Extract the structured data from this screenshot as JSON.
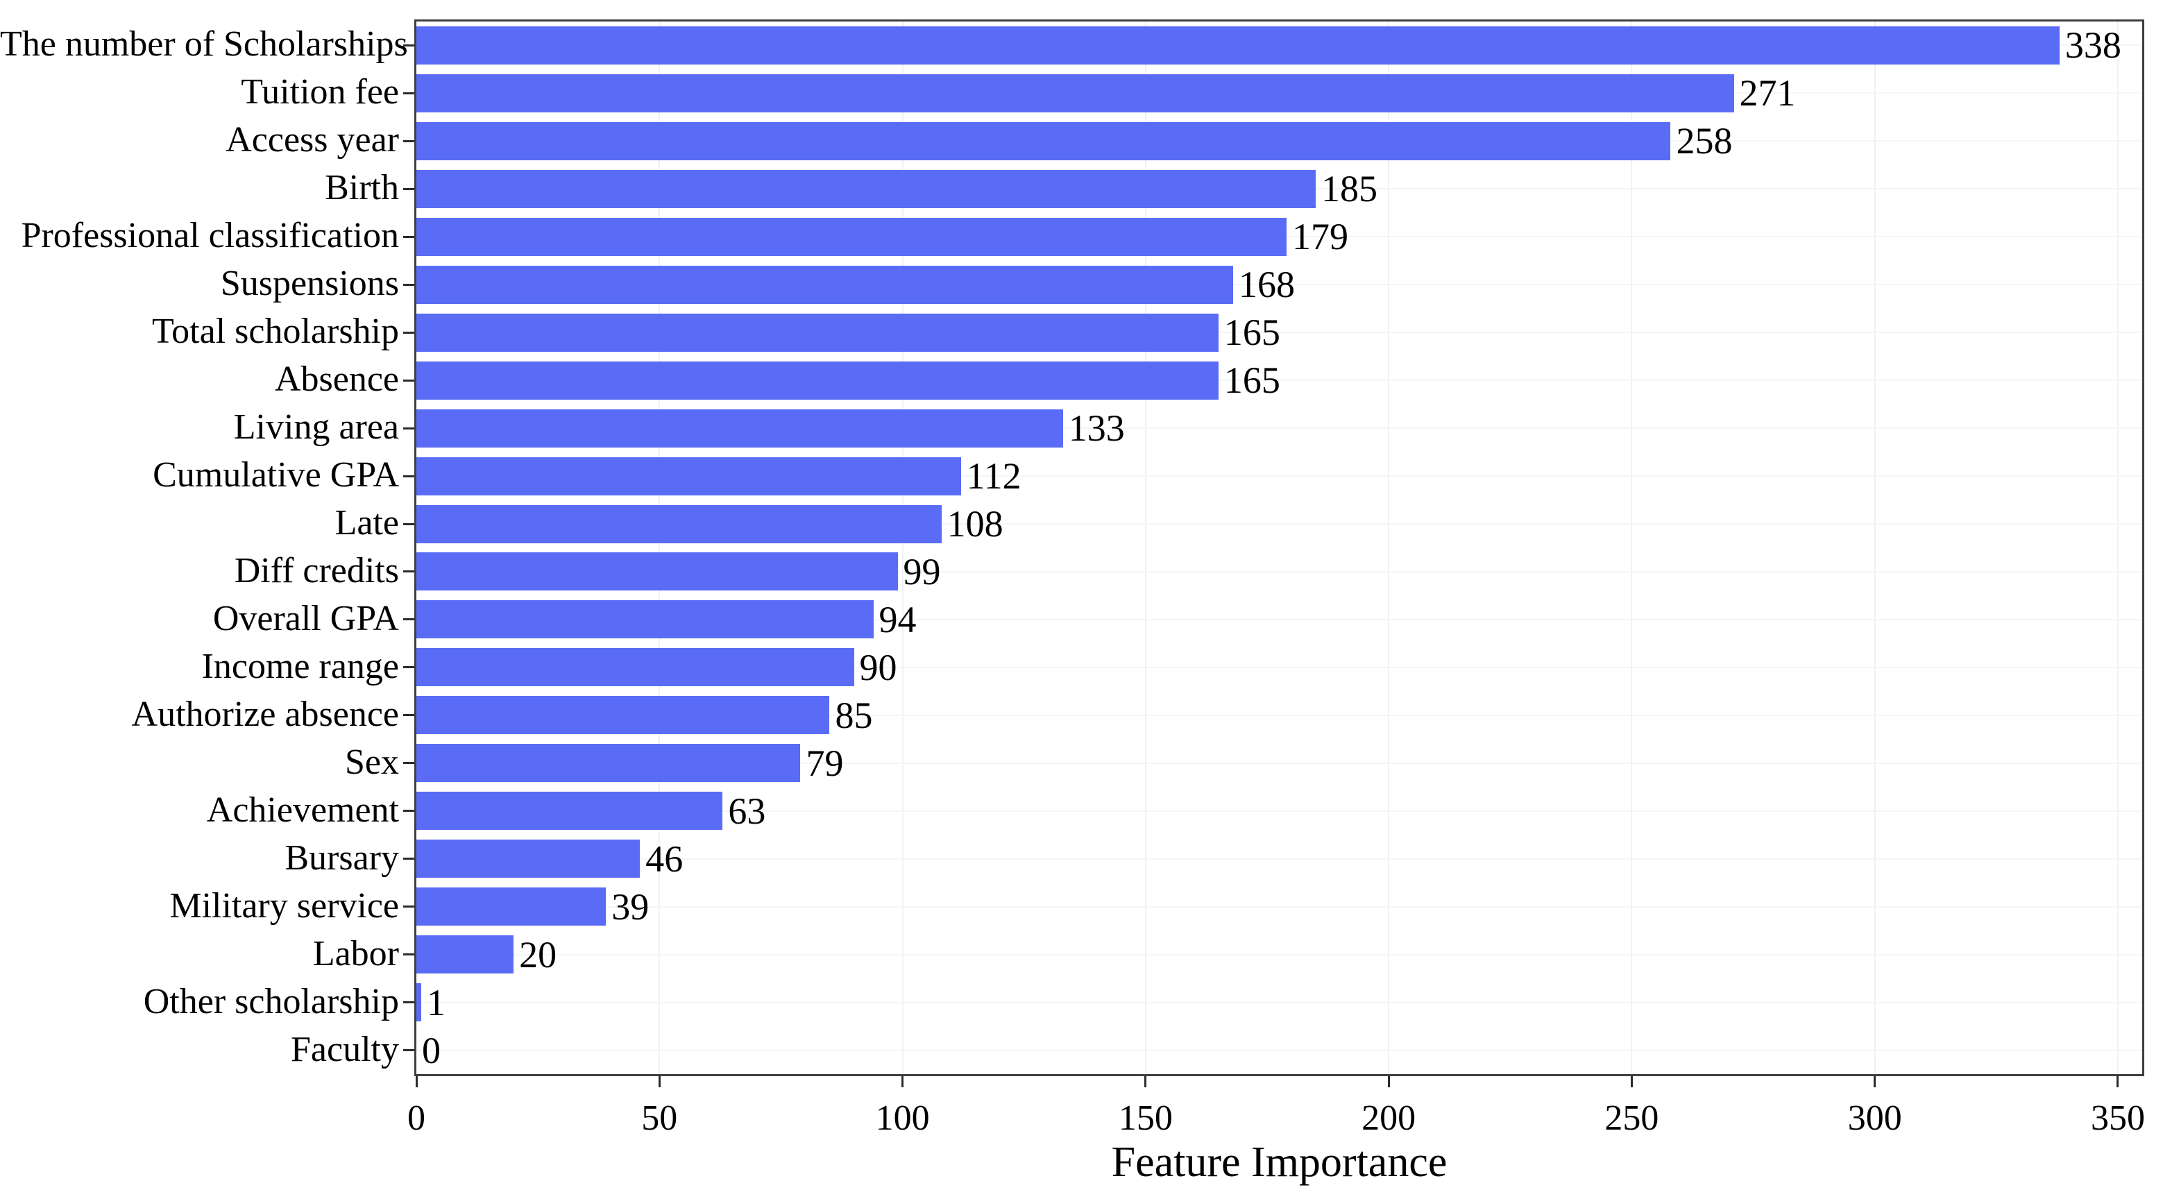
{
  "chart_data": {
    "type": "bar",
    "orientation": "horizontal",
    "title": "",
    "xlabel": "Feature Importance",
    "ylabel": "",
    "categories": [
      "The number of Scholarships",
      "Tuition fee",
      "Access year",
      "Birth",
      "Professional classification",
      "Suspensions",
      "Total scholarship",
      "Absence",
      "Living area",
      "Cumulative GPA",
      "Late",
      "Diff credits",
      "Overall GPA",
      "Income range",
      "Authorize absence",
      "Sex",
      "Achievement",
      "Bursary",
      "Military service",
      "Labor",
      "Other scholarship",
      "Faculty"
    ],
    "values": [
      338,
      271,
      258,
      185,
      179,
      168,
      165,
      165,
      133,
      112,
      108,
      99,
      94,
      90,
      85,
      79,
      63,
      46,
      39,
      20,
      1,
      0
    ],
    "value_labels_shown": true,
    "x_ticks": [
      0,
      50,
      100,
      150,
      200,
      250,
      300,
      350
    ],
    "x_tick_labels": [
      "0",
      "50",
      "100",
      "150",
      "200",
      "250",
      "300",
      "350"
    ],
    "xlim": [
      0,
      355
    ],
    "grid": true,
    "legend": "none",
    "colors": {
      "bar": "#5a6cf5",
      "grid_vertical": "#edf3f2",
      "grid_horizontal": "#f2f7f6",
      "spine": "#3f3f3f",
      "tick": "#2b2b2b",
      "text": "#000000",
      "background": "#ffffff"
    }
  }
}
